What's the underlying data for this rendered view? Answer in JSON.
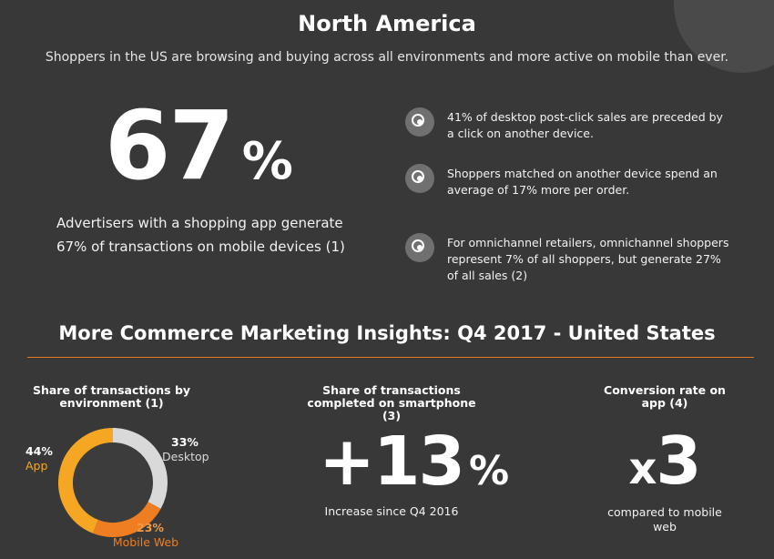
{
  "header": {
    "title": "North America",
    "subtitle": "Shoppers in the US are browsing and buying across all environments and more active on mobile than ever."
  },
  "hero": {
    "value": "67",
    "unit": "%",
    "caption": "Advertisers with a shopping app generate 67% of transactions on mobile devices (1)"
  },
  "bullets": [
    {
      "icon": "target-icon",
      "text": "41% of desktop post-click sales are preceded by a click on another device."
    },
    {
      "icon": "target-icon",
      "text": "Shoppers matched on another device spend an average of 17% more per order."
    },
    {
      "icon": "target-icon",
      "text": "For omnichannel retailers, omnichannel shoppers represent 7% of all shoppers, but generate 27% of all sales (2)"
    }
  ],
  "insights": {
    "title": "More Commerce Marketing Insights: Q4 2017 - United States",
    "environment": {
      "heading": "Share of transactions by environment (1)",
      "app_value": "44%",
      "app_label": "App",
      "desktop_value": "33%",
      "desktop_label": "Desktop",
      "mobile_value": "23%",
      "mobile_label": "Mobile Web"
    },
    "smartphone": {
      "heading": "Share of transactions completed on smartphone (3)",
      "value": "+13",
      "unit": "%",
      "caption": "Increase since Q4 2016"
    },
    "conversion": {
      "heading": "Conversion rate on app (4)",
      "prefix": "x",
      "value": "3",
      "caption": "compared to mobile web"
    }
  },
  "chart_data": {
    "type": "pie",
    "categories": [
      "App",
      "Desktop",
      "Mobile Web"
    ],
    "values": [
      44,
      33,
      23
    ],
    "colors": {
      "App": "#f5a623",
      "Desktop": "#d9d9d9",
      "Mobile Web": "#ef7d22",
      "hole": "#3c3c3c"
    }
  }
}
